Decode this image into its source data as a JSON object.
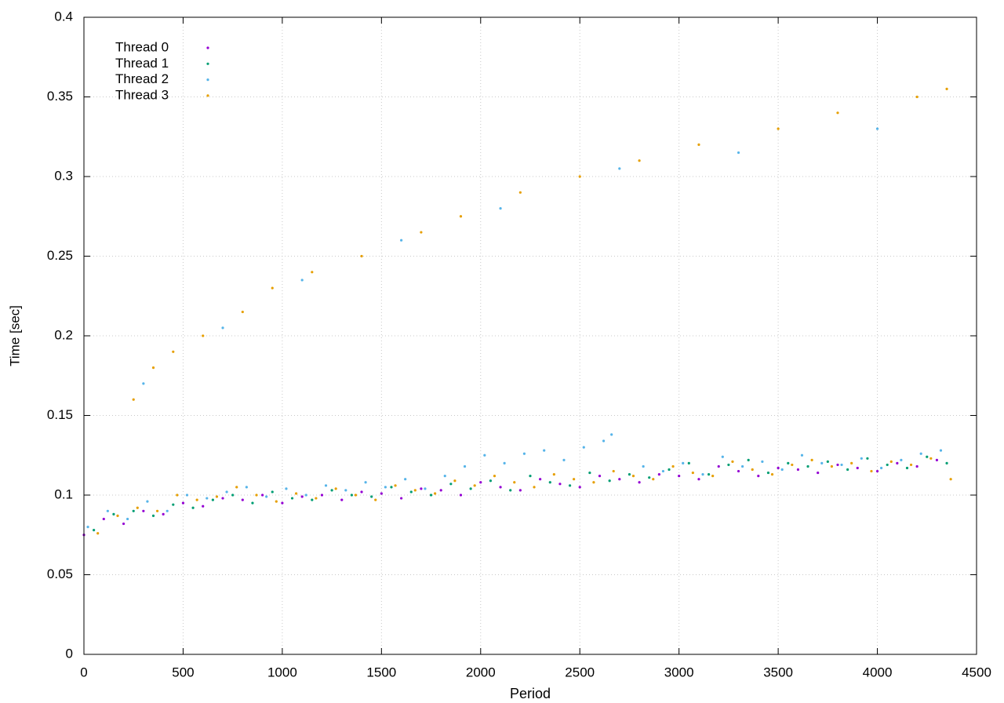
{
  "chart_data": {
    "type": "scatter",
    "xlabel": "Period",
    "ylabel": "Time [sec]",
    "xlim": [
      0,
      4500
    ],
    "xticks": [
      0,
      500,
      1000,
      1500,
      2000,
      2500,
      3000,
      3500,
      4000,
      4500
    ],
    "ylim": [
      0,
      0.4
    ],
    "yticks": [
      0,
      0.05,
      0.1,
      0.15,
      0.2,
      0.25,
      0.3,
      0.35,
      0.4
    ],
    "grid": true,
    "legend": "top-left",
    "series": [
      {
        "name": "Thread 0",
        "color": "#9400d3",
        "x": [
          0,
          100,
          200,
          300,
          400,
          500,
          600,
          700,
          800,
          900,
          1000,
          1100,
          1200,
          1300,
          1400,
          1500,
          1600,
          1700,
          1800,
          1900,
          2000,
          2100,
          2200,
          2300,
          2400,
          2500,
          2600,
          2700,
          2800,
          2900,
          3000,
          3100,
          3200,
          3300,
          3400,
          3500,
          3600,
          3700,
          3800,
          3900,
          4000,
          4100,
          4200,
          4300
        ],
        "values": [
          0.075,
          0.085,
          0.082,
          0.09,
          0.088,
          0.095,
          0.093,
          0.098,
          0.097,
          0.1,
          0.095,
          0.099,
          0.1,
          0.097,
          0.102,
          0.101,
          0.098,
          0.104,
          0.103,
          0.1,
          0.108,
          0.105,
          0.103,
          0.11,
          0.107,
          0.105,
          0.112,
          0.11,
          0.108,
          0.113,
          0.112,
          0.11,
          0.118,
          0.115,
          0.112,
          0.117,
          0.116,
          0.114,
          0.119,
          0.117,
          0.115,
          0.12,
          0.118,
          0.122
        ]
      },
      {
        "name": "Thread 1",
        "color": "#009e73",
        "x": [
          50,
          150,
          250,
          350,
          450,
          550,
          650,
          750,
          850,
          950,
          1050,
          1150,
          1250,
          1350,
          1450,
          1550,
          1650,
          1750,
          1850,
          1950,
          2050,
          2150,
          2250,
          2350,
          2450,
          2550,
          2650,
          2750,
          2850,
          2950,
          3050,
          3150,
          3250,
          3350,
          3450,
          3550,
          3650,
          3750,
          3850,
          3950,
          4050,
          4150,
          4250,
          4350
        ],
        "values": [
          0.078,
          0.088,
          0.09,
          0.087,
          0.094,
          0.092,
          0.097,
          0.1,
          0.095,
          0.102,
          0.098,
          0.097,
          0.103,
          0.1,
          0.099,
          0.105,
          0.102,
          0.1,
          0.107,
          0.104,
          0.109,
          0.103,
          0.112,
          0.108,
          0.106,
          0.114,
          0.109,
          0.113,
          0.111,
          0.116,
          0.12,
          0.113,
          0.119,
          0.122,
          0.114,
          0.12,
          0.118,
          0.121,
          0.116,
          0.123,
          0.119,
          0.117,
          0.124,
          0.12
        ]
      },
      {
        "name": "Thread 2",
        "color": "#56b4e9",
        "x": [
          20,
          120,
          220,
          320,
          420,
          520,
          620,
          720,
          820,
          920,
          1020,
          1120,
          1220,
          1320,
          1420,
          1520,
          1620,
          1720,
          1820,
          1920,
          2020,
          2120,
          2220,
          2320,
          2420,
          2520,
          2620,
          2660,
          2820,
          2920,
          3020,
          3120,
          3220,
          3320,
          3420,
          3520,
          3620,
          3720,
          3820,
          3920,
          4020,
          4120,
          4220,
          4320,
          300,
          700,
          1100,
          1600,
          2100,
          2700,
          3300,
          4000
        ],
        "values": [
          0.08,
          0.09,
          0.085,
          0.096,
          0.09,
          0.1,
          0.098,
          0.102,
          0.105,
          0.099,
          0.104,
          0.1,
          0.106,
          0.103,
          0.108,
          0.105,
          0.11,
          0.104,
          0.112,
          0.118,
          0.125,
          0.12,
          0.126,
          0.128,
          0.122,
          0.13,
          0.134,
          0.138,
          0.118,
          0.115,
          0.12,
          0.113,
          0.124,
          0.118,
          0.121,
          0.116,
          0.125,
          0.12,
          0.119,
          0.123,
          0.117,
          0.122,
          0.126,
          0.128,
          0.17,
          0.205,
          0.235,
          0.26,
          0.28,
          0.305,
          0.315,
          0.33
        ]
      },
      {
        "name": "Thread 3",
        "color": "#e69f00",
        "x": [
          70,
          170,
          270,
          370,
          470,
          570,
          670,
          770,
          870,
          970,
          1070,
          1170,
          1270,
          1370,
          1470,
          1570,
          1670,
          1770,
          1870,
          1970,
          2070,
          2170,
          2270,
          2370,
          2470,
          2570,
          2670,
          2770,
          2870,
          2970,
          3070,
          3170,
          3270,
          3370,
          3470,
          3570,
          3670,
          3770,
          3870,
          3970,
          4070,
          4170,
          4270,
          4370,
          250,
          350,
          450,
          600,
          800,
          950,
          1150,
          1400,
          1700,
          1900,
          2200,
          2500,
          2800,
          3100,
          3500,
          3800,
          4200,
          4350
        ],
        "values": [
          0.076,
          0.087,
          0.092,
          0.09,
          0.1,
          0.097,
          0.099,
          0.105,
          0.1,
          0.096,
          0.101,
          0.098,
          0.104,
          0.1,
          0.097,
          0.106,
          0.103,
          0.101,
          0.109,
          0.106,
          0.112,
          0.108,
          0.105,
          0.113,
          0.11,
          0.108,
          0.115,
          0.112,
          0.11,
          0.118,
          0.114,
          0.112,
          0.121,
          0.116,
          0.113,
          0.119,
          0.122,
          0.118,
          0.12,
          0.115,
          0.121,
          0.119,
          0.123,
          0.11,
          0.16,
          0.18,
          0.19,
          0.2,
          0.215,
          0.23,
          0.24,
          0.25,
          0.265,
          0.275,
          0.29,
          0.3,
          0.31,
          0.32,
          0.33,
          0.34,
          0.35,
          0.355
        ]
      }
    ]
  }
}
